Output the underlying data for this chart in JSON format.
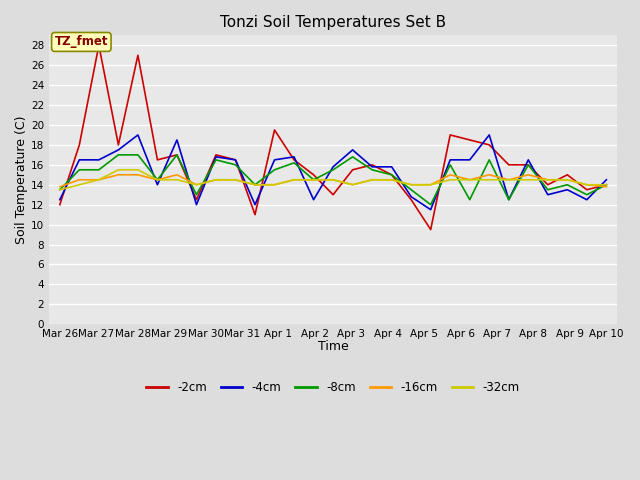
{
  "title": "Tonzi Soil Temperatures Set B",
  "xlabel": "Time",
  "ylabel": "Soil Temperature (C)",
  "annotation": "TZ_fmet",
  "ylim": [
    0,
    29
  ],
  "yticks": [
    0,
    2,
    4,
    6,
    8,
    10,
    12,
    14,
    16,
    18,
    20,
    22,
    24,
    26,
    28
  ],
  "x_labels": [
    "Mar 26",
    "Mar 27",
    "Mar 28",
    "Mar 29",
    "Mar 30",
    "Mar 31",
    "Apr 1",
    "Apr 2",
    "Apr 3",
    "Apr 4",
    "Apr 5",
    "Apr 6",
    "Apr 7",
    "Apr 8",
    "Apr 9",
    "Apr 10"
  ],
  "series": {
    "-2cm": {
      "color": "#cc0000",
      "values": [
        12.0,
        18.0,
        28.0,
        18.0,
        27.0,
        16.5,
        17.0,
        12.5,
        17.0,
        16.5,
        11.0,
        19.5,
        16.5,
        15.0,
        13.0,
        15.5,
        16.0,
        15.0,
        12.5,
        9.5,
        19.0,
        18.5,
        18.0,
        16.0,
        16.0,
        14.0,
        15.0,
        13.5,
        14.0
      ]
    },
    "-4cm": {
      "color": "#0000cc",
      "values": [
        12.5,
        16.5,
        16.5,
        17.5,
        19.0,
        14.0,
        18.5,
        12.0,
        16.8,
        16.5,
        12.0,
        16.5,
        16.8,
        12.5,
        15.8,
        17.5,
        15.8,
        15.8,
        12.8,
        11.5,
        16.5,
        16.5,
        19.0,
        12.5,
        16.5,
        13.0,
        13.5,
        12.5,
        14.5
      ]
    },
    "-8cm": {
      "color": "#009900",
      "values": [
        13.5,
        15.5,
        15.5,
        17.0,
        17.0,
        14.5,
        17.0,
        13.0,
        16.5,
        16.0,
        14.0,
        15.5,
        16.2,
        14.5,
        15.5,
        16.8,
        15.5,
        15.0,
        13.5,
        12.0,
        16.0,
        12.5,
        16.5,
        12.5,
        16.0,
        13.5,
        14.0,
        13.0,
        14.0
      ]
    },
    "-16cm": {
      "color": "#ff9900",
      "values": [
        13.8,
        14.5,
        14.5,
        15.0,
        15.0,
        14.5,
        15.0,
        14.0,
        14.5,
        14.5,
        14.0,
        14.0,
        14.5,
        14.5,
        14.5,
        14.0,
        14.5,
        14.5,
        14.0,
        14.0,
        15.0,
        14.5,
        15.0,
        14.5,
        15.0,
        14.5,
        14.5,
        14.0,
        13.8
      ]
    },
    "-32cm": {
      "color": "#cccc00",
      "values": [
        13.5,
        14.0,
        14.5,
        15.5,
        15.5,
        14.5,
        14.5,
        14.0,
        14.5,
        14.5,
        14.0,
        14.0,
        14.5,
        14.5,
        14.5,
        14.0,
        14.5,
        14.5,
        14.0,
        14.0,
        14.5,
        14.5,
        14.5,
        14.5,
        14.5,
        14.5,
        14.5,
        14.0,
        14.0
      ]
    }
  },
  "legend_order": [
    "-2cm",
    "-4cm",
    "-8cm",
    "-16cm",
    "-32cm"
  ],
  "figure_bg_color": "#dddddd",
  "plot_bg_color": "#e8e8e8",
  "grid_color": "#ffffff",
  "title_fontsize": 11,
  "axis_label_fontsize": 9,
  "tick_fontsize": 7.5
}
